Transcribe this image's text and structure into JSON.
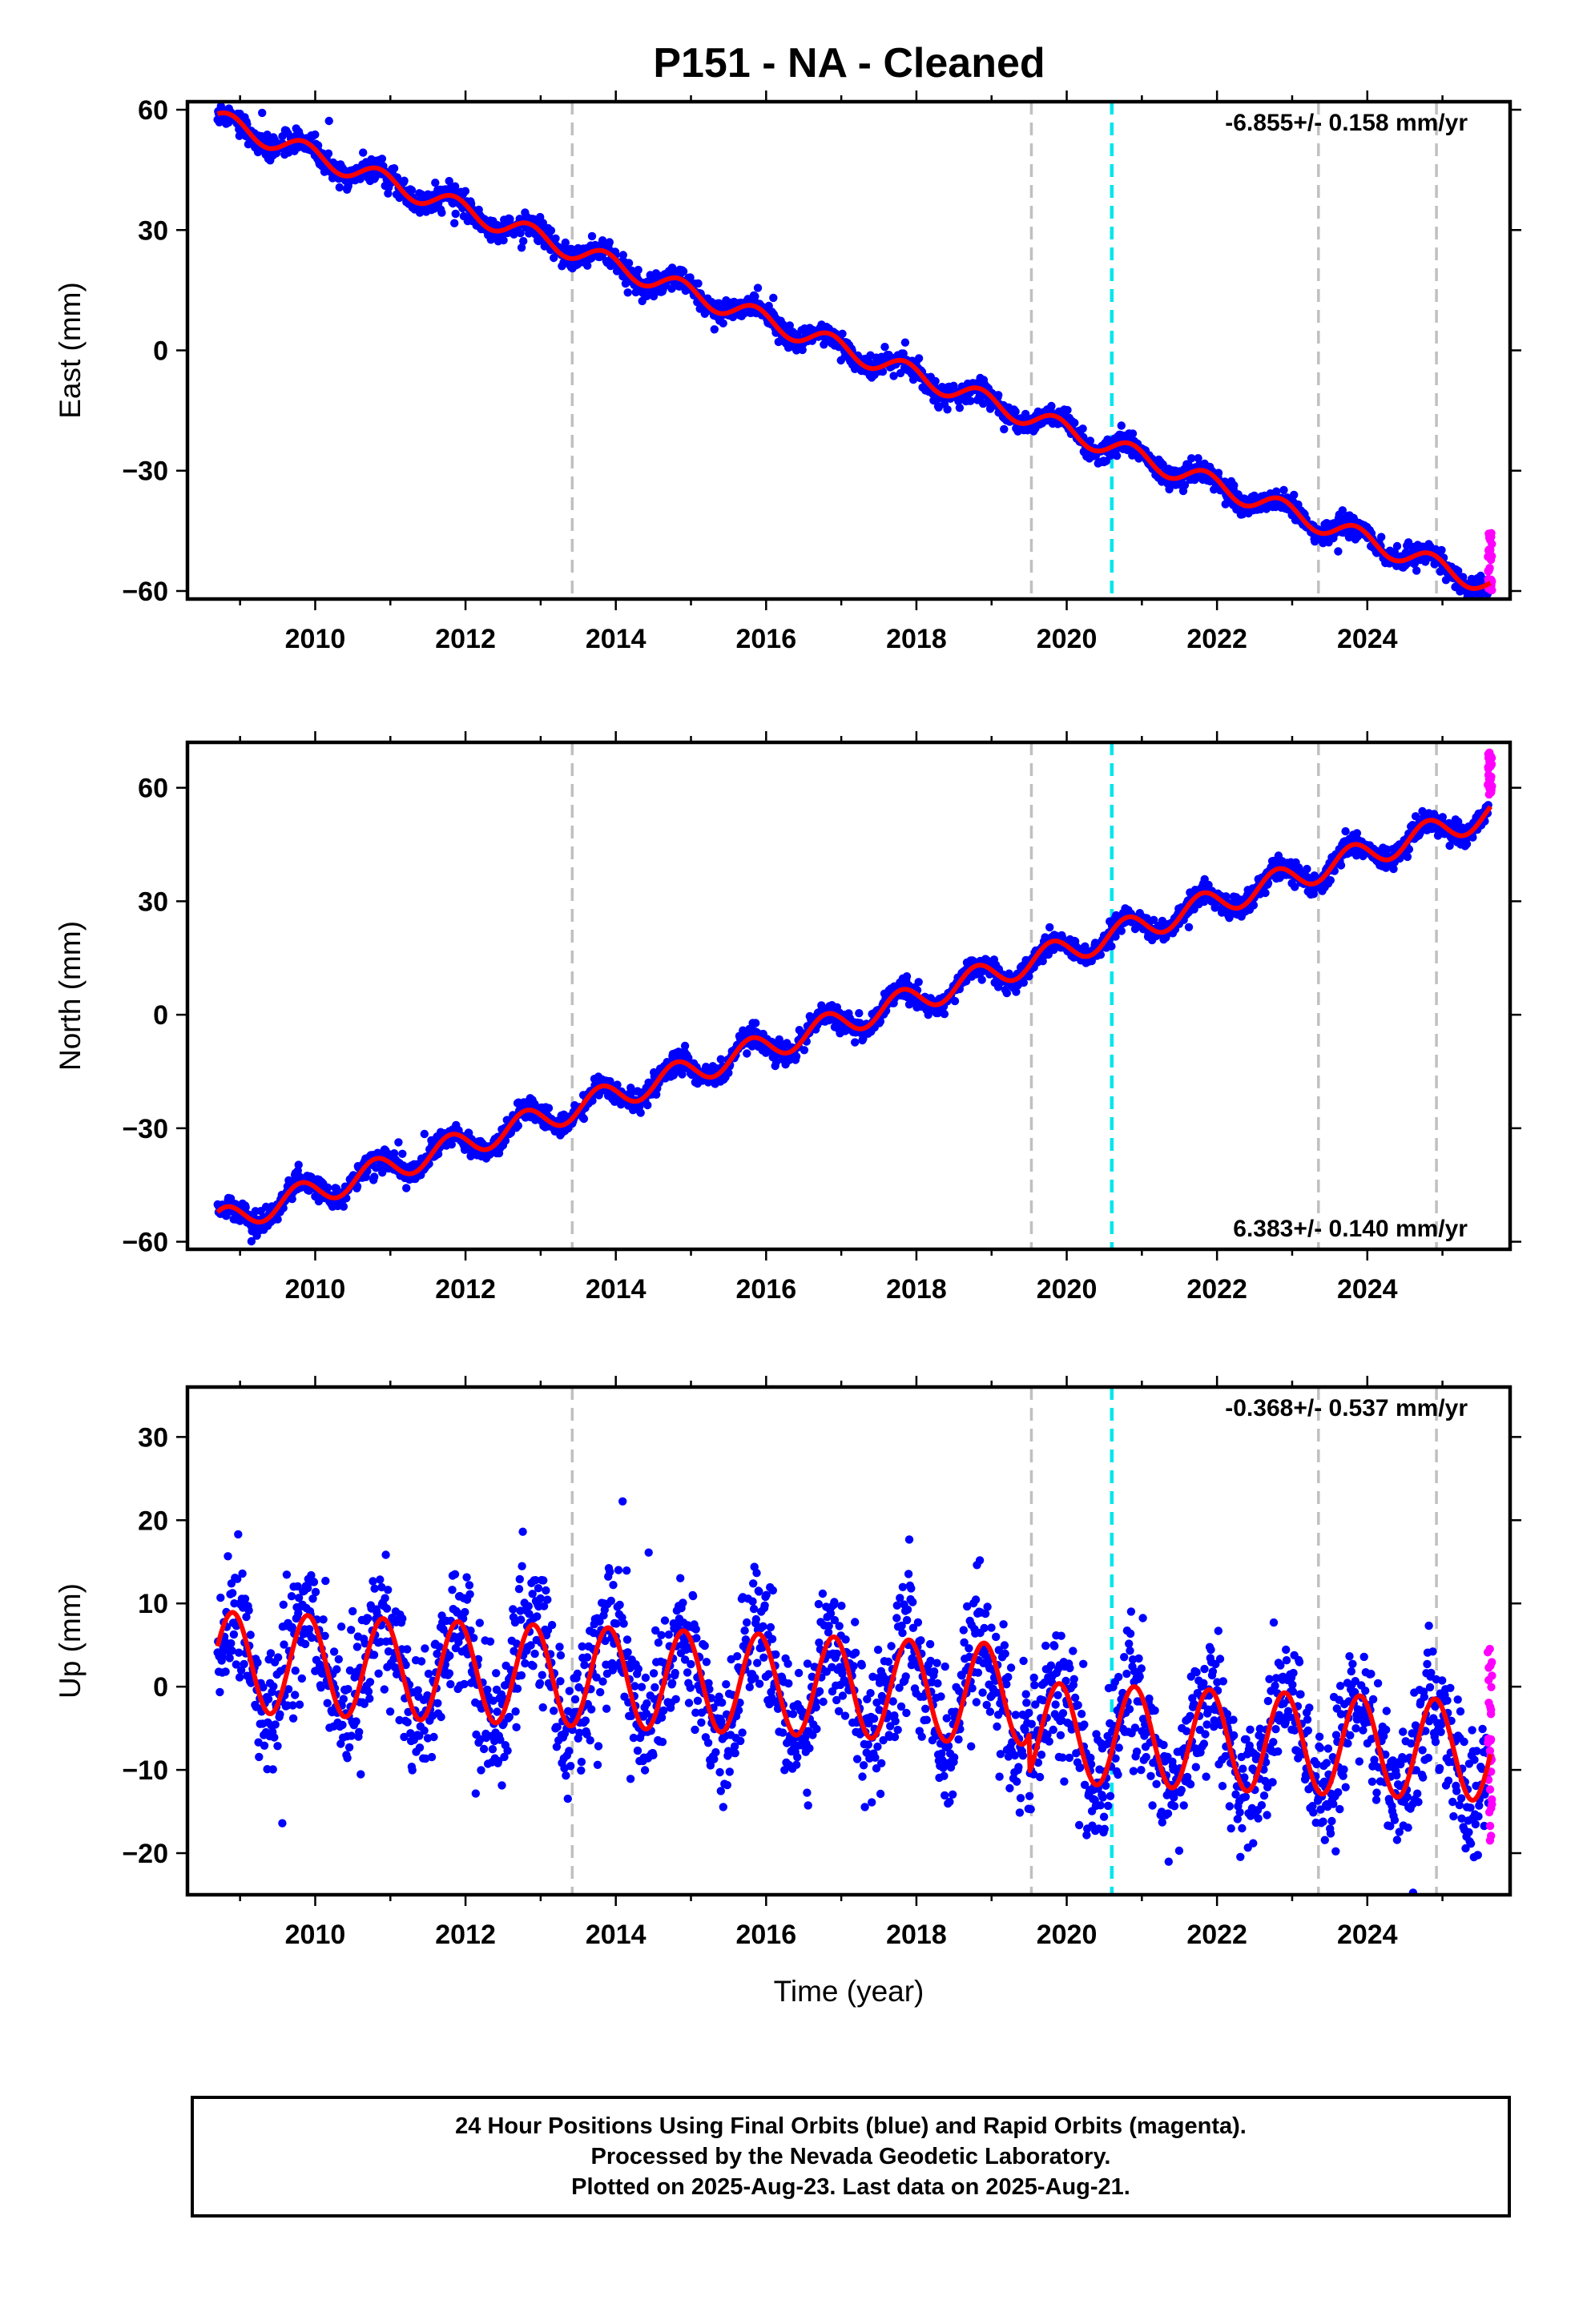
{
  "title": "P151  - NA - Cleaned",
  "colors": {
    "final_orbits": "#0000ff",
    "rapid_orbits": "#ff00ff",
    "model_fit": "#ff0000",
    "equipment_change": "#c0c0c0",
    "earthquake": "#00e5ee"
  },
  "chart_data": [
    {
      "type": "scatter",
      "component": "East",
      "ylabel": "East (mm)",
      "xlabel": "",
      "xlim": [
        2008.3,
        2025.9
      ],
      "ylim": [
        -62,
        62
      ],
      "xticks": [
        2010,
        2012,
        2014,
        2016,
        2018,
        2020,
        2022,
        2024
      ],
      "yticks": [
        -60,
        -30,
        0,
        30,
        60
      ],
      "rate_label": "-6.855+/- 0.158 mm/yr",
      "rate_label_position": "top-right",
      "model": {
        "t0": 2008.7,
        "y0": 57.5,
        "slope": -6.855,
        "annual_amp": 2.5,
        "annual_phase_year": 0.6
      },
      "scatter_sd": 1.4,
      "rapid_y_range": [
        -60,
        -45
      ],
      "gray_dashed_x": [
        2013.42,
        2019.53,
        2023.35,
        2024.92
      ],
      "cyan_dashed_x": [
        2020.6
      ],
      "data_range": [
        2008.7,
        2025.64
      ]
    },
    {
      "type": "scatter",
      "component": "North",
      "ylabel": "North (mm)",
      "xlabel": "",
      "xlim": [
        2008.3,
        2025.9
      ],
      "ylim": [
        -62,
        72
      ],
      "xticks": [
        2010,
        2012,
        2014,
        2016,
        2018,
        2020,
        2022,
        2024
      ],
      "yticks": [
        -60,
        -30,
        0,
        30,
        60
      ],
      "rate_label": "6.383+/- 0.140 mm/yr",
      "rate_label_position": "bottom-right",
      "model": {
        "t0": 2008.7,
        "y0": -55.0,
        "slope": 6.383,
        "annual_amp": 3.5,
        "annual_phase_year": 0.55
      },
      "scatter_sd": 1.5,
      "rapid_y_range": [
        58,
        70
      ],
      "gray_dashed_x": [
        2013.42,
        2019.53,
        2023.35,
        2024.92
      ],
      "cyan_dashed_x": [
        2020.6
      ],
      "data_range": [
        2008.7,
        2025.64
      ]
    },
    {
      "type": "scatter",
      "component": "Up",
      "ylabel": "Up (mm)",
      "xlabel": "Time (year)",
      "xlim": [
        2008.3,
        2025.9
      ],
      "ylim": [
        -25,
        36
      ],
      "xticks": [
        2010,
        2012,
        2014,
        2016,
        2018,
        2020,
        2022,
        2024
      ],
      "yticks": [
        -20,
        -10,
        0,
        10,
        20,
        30
      ],
      "rate_label": "-0.368+/- 0.537 mm/yr",
      "rate_label_position": "top-right",
      "model": {
        "t0": 2008.7,
        "y0": 3.0,
        "slope": -0.368,
        "annual_amp": 6.0,
        "annual_phase_year": 0.65,
        "offset_after_2019.5": -4.5
      },
      "scatter_sd": 4.0,
      "rapid_y_range": [
        -19,
        8
      ],
      "gray_dashed_x": [
        2013.42,
        2019.53,
        2023.35,
        2024.92
      ],
      "cyan_dashed_x": [
        2020.6
      ],
      "data_range": [
        2008.7,
        2025.64
      ]
    }
  ],
  "footer": {
    "line1": "24 Hour Positions Using Final Orbits (blue) and Rapid Orbits (magenta).",
    "line2": "Processed by the Nevada Geodetic Laboratory.",
    "line3": "Plotted on 2025-Aug-23. Last data on 2025-Aug-21."
  }
}
